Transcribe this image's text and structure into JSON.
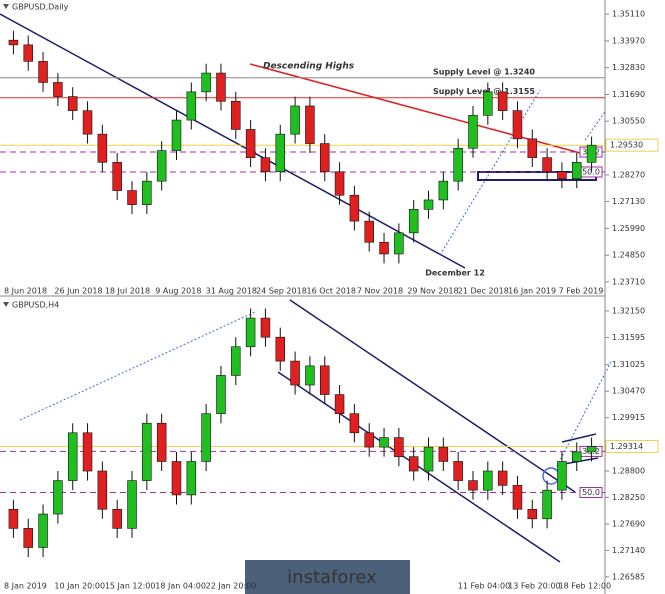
{
  "chart_data": [
    {
      "type": "candlestick",
      "title": "GBPUSD,Daily",
      "ylim": [
        1.2358,
        1.3571
      ],
      "yticks": [
        {
          "value": 1.3511,
          "label": "1.35110"
        },
        {
          "value": 1.3397,
          "label": "1.33970"
        },
        {
          "value": 1.3283,
          "label": "1.32830"
        },
        {
          "value": 1.3169,
          "label": "1.31690"
        },
        {
          "value": 1.3055,
          "label": "1.30550"
        },
        {
          "value": 1.2827,
          "label": "1.28270"
        },
        {
          "value": 1.2713,
          "label": "1.27130"
        },
        {
          "value": 1.2599,
          "label": "1.25990"
        },
        {
          "value": 1.2485,
          "label": "1.24850"
        },
        {
          "value": 1.2371,
          "label": "1.23710"
        }
      ],
      "x_labels": [
        "8 Jun 2018",
        "26 Jun 2018",
        "18 Jul 2018",
        "9 Aug 2018",
        "31 Aug 2018",
        "24 Sep 2018",
        "16 Oct 2018",
        "7 Nov 2018",
        "29 Nov 2018",
        "21 Dec 2018",
        "16 Jan 2019",
        "7 Feb 2019"
      ],
      "ohlc": [
        [
          1.34,
          1.344,
          1.334,
          1.338
        ],
        [
          1.338,
          1.342,
          1.327,
          1.331
        ],
        [
          1.331,
          1.335,
          1.318,
          1.322
        ],
        [
          1.322,
          1.326,
          1.312,
          1.316
        ],
        [
          1.316,
          1.32,
          1.306,
          1.31
        ],
        [
          1.31,
          1.314,
          1.296,
          1.3
        ],
        [
          1.3,
          1.304,
          1.284,
          1.288
        ],
        [
          1.288,
          1.292,
          1.272,
          1.276
        ],
        [
          1.276,
          1.28,
          1.266,
          1.27
        ],
        [
          1.27,
          1.284,
          1.266,
          1.28
        ],
        [
          1.28,
          1.297,
          1.276,
          1.293
        ],
        [
          1.293,
          1.31,
          1.289,
          1.306
        ],
        [
          1.306,
          1.322,
          1.302,
          1.318
        ],
        [
          1.318,
          1.33,
          1.314,
          1.326
        ],
        [
          1.326,
          1.33,
          1.31,
          1.314
        ],
        [
          1.314,
          1.318,
          1.298,
          1.302
        ],
        [
          1.302,
          1.306,
          1.286,
          1.29
        ],
        [
          1.29,
          1.294,
          1.28,
          1.284
        ],
        [
          1.284,
          1.304,
          1.28,
          1.3
        ],
        [
          1.3,
          1.316,
          1.296,
          1.312
        ],
        [
          1.312,
          1.316,
          1.292,
          1.296
        ],
        [
          1.296,
          1.3,
          1.28,
          1.284
        ],
        [
          1.284,
          1.288,
          1.27,
          1.274
        ],
        [
          1.274,
          1.278,
          1.259,
          1.263
        ],
        [
          1.263,
          1.267,
          1.25,
          1.254
        ],
        [
          1.254,
          1.258,
          1.245,
          1.249
        ],
        [
          1.249,
          1.262,
          1.245,
          1.258
        ],
        [
          1.258,
          1.272,
          1.254,
          1.268
        ],
        [
          1.268,
          1.276,
          1.264,
          1.272
        ],
        [
          1.272,
          1.284,
          1.268,
          1.28
        ],
        [
          1.28,
          1.298,
          1.276,
          1.294
        ],
        [
          1.294,
          1.312,
          1.29,
          1.308
        ],
        [
          1.308,
          1.322,
          1.304,
          1.318
        ],
        [
          1.318,
          1.322,
          1.306,
          1.31
        ],
        [
          1.31,
          1.314,
          1.294,
          1.298
        ],
        [
          1.298,
          1.302,
          1.286,
          1.29
        ],
        [
          1.29,
          1.294,
          1.28,
          1.284
        ],
        [
          1.284,
          1.288,
          1.277,
          1.281
        ],
        [
          1.281,
          1.292,
          1.277,
          1.288
        ],
        [
          1.288,
          1.299,
          1.284,
          1.2953
        ]
      ],
      "levels": [
        {
          "value": 1.324,
          "color": "#8a8a8a",
          "label": "Supply Level @ 1.3240"
        },
        {
          "value": 1.3155,
          "color": "#e03030",
          "label": "Supply Level @ 1.3155"
        },
        {
          "value": 1.2953,
          "color": "#e8d44d"
        },
        {
          "value": 1.2924,
          "color": "#9b30a0",
          "dashed": true,
          "label": "38.2"
        },
        {
          "value": 1.2839,
          "color": "#9b30a0",
          "dashed": true,
          "label": "50.0"
        }
      ],
      "last": {
        "value": 1.2953,
        "label": "1.29530"
      },
      "annotations": [
        "Descending Highs",
        "December 12"
      ]
    },
    {
      "type": "candlestick",
      "title": "GBPUSD,H4",
      "ylim": [
        1.2652,
        1.3242
      ],
      "yticks": [
        {
          "value": 1.3215,
          "label": "1.32150"
        },
        {
          "value": 1.31595,
          "label": "1.31595"
        },
        {
          "value": 1.31025,
          "label": "1.31025"
        },
        {
          "value": 1.3047,
          "label": "1.30470"
        },
        {
          "value": 1.29915,
          "label": "1.29915"
        },
        {
          "value": 1.288,
          "label": "1.28800"
        },
        {
          "value": 1.2825,
          "label": "1.28250"
        },
        {
          "value": 1.2769,
          "label": "1.27690"
        },
        {
          "value": 1.2714,
          "label": "1.27140"
        },
        {
          "value": 1.26585,
          "label": "1.26585"
        }
      ],
      "x_labels": [
        "8 Jan 2019",
        "10 Jan 20:00",
        "15 Jan 12:00",
        "18 Jan 04:00",
        "22 Jan 20:00",
        null,
        null,
        null,
        null,
        "11 Feb 04:00",
        "13 Feb 20:00",
        "18 Feb 12:00"
      ],
      "ohlc": [
        [
          1.28,
          1.282,
          1.274,
          1.276
        ],
        [
          1.276,
          1.278,
          1.27,
          1.272
        ],
        [
          1.272,
          1.281,
          1.27,
          1.279
        ],
        [
          1.279,
          1.288,
          1.277,
          1.286
        ],
        [
          1.286,
          1.298,
          1.284,
          1.296
        ],
        [
          1.296,
          1.298,
          1.286,
          1.288
        ],
        [
          1.288,
          1.29,
          1.278,
          1.28
        ],
        [
          1.28,
          1.282,
          1.274,
          1.276
        ],
        [
          1.276,
          1.288,
          1.274,
          1.286
        ],
        [
          1.286,
          1.3,
          1.284,
          1.298
        ],
        [
          1.298,
          1.3,
          1.288,
          1.29
        ],
        [
          1.29,
          1.292,
          1.281,
          1.283
        ],
        [
          1.283,
          1.292,
          1.281,
          1.29
        ],
        [
          1.29,
          1.302,
          1.288,
          1.3
        ],
        [
          1.3,
          1.31,
          1.298,
          1.308
        ],
        [
          1.308,
          1.316,
          1.306,
          1.314
        ],
        [
          1.314,
          1.322,
          1.312,
          1.32
        ],
        [
          1.32,
          1.322,
          1.314,
          1.316
        ],
        [
          1.316,
          1.318,
          1.309,
          1.311
        ],
        [
          1.311,
          1.313,
          1.304,
          1.306
        ],
        [
          1.306,
          1.312,
          1.304,
          1.31
        ],
        [
          1.31,
          1.312,
          1.302,
          1.304
        ],
        [
          1.304,
          1.306,
          1.298,
          1.3
        ],
        [
          1.3,
          1.302,
          1.294,
          1.296
        ],
        [
          1.296,
          1.298,
          1.291,
          1.293
        ],
        [
          1.293,
          1.297,
          1.291,
          1.295
        ],
        [
          1.295,
          1.297,
          1.289,
          1.291
        ],
        [
          1.291,
          1.293,
          1.286,
          1.288
        ],
        [
          1.288,
          1.295,
          1.286,
          1.293
        ],
        [
          1.293,
          1.295,
          1.288,
          1.29
        ],
        [
          1.29,
          1.292,
          1.284,
          1.286
        ],
        [
          1.286,
          1.288,
          1.282,
          1.284
        ],
        [
          1.284,
          1.29,
          1.282,
          1.288
        ],
        [
          1.288,
          1.29,
          1.283,
          1.285
        ],
        [
          1.285,
          1.287,
          1.278,
          1.28
        ],
        [
          1.28,
          1.282,
          1.276,
          1.278
        ],
        [
          1.278,
          1.286,
          1.276,
          1.284
        ],
        [
          1.284,
          1.292,
          1.282,
          1.29
        ],
        [
          1.29,
          1.294,
          1.288,
          1.292
        ],
        [
          1.292,
          1.295,
          1.29,
          1.2931
        ]
      ],
      "levels": [
        {
          "value": 1.29314,
          "color": "#e8d44d"
        },
        {
          "value": 1.2921,
          "color": "#9b30a0",
          "dashed": true,
          "label": "38.2"
        },
        {
          "value": 1.2835,
          "color": "#9b30a0",
          "dashed": true,
          "label": "50.0"
        }
      ],
      "last": {
        "value": 1.29314,
        "label": "1.29314"
      }
    }
  ],
  "watermark": "instaforex"
}
